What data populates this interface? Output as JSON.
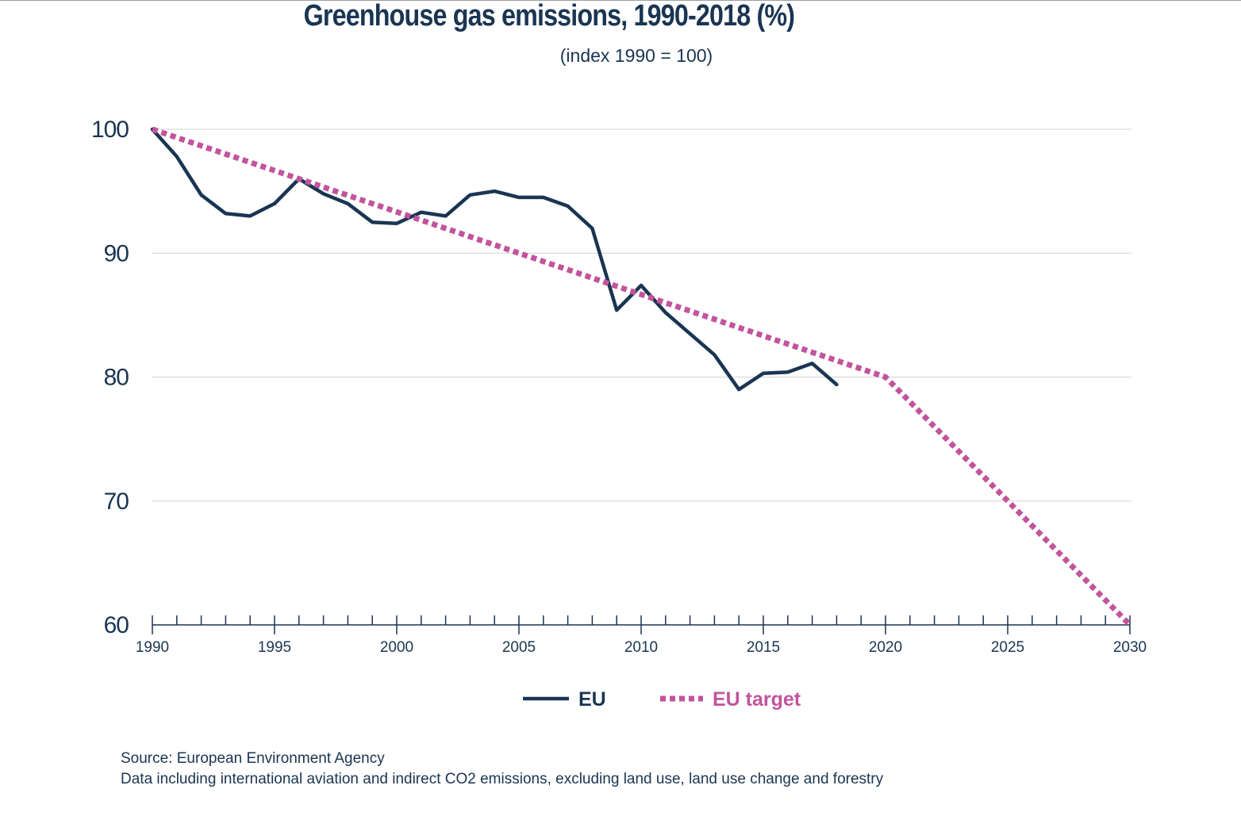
{
  "chart_data": {
    "type": "line",
    "title": "Greenhouse gas emissions, 1990-2018 (%)",
    "subtitle": "(index 1990 = 100)",
    "xlabel": "",
    "ylabel": "",
    "xlim": [
      1990,
      2030
    ],
    "ylim": [
      60,
      100
    ],
    "y_ticks": [
      100,
      90,
      80,
      70,
      60
    ],
    "x_tick_labels": [
      1990,
      1995,
      2000,
      2005,
      2010,
      2015,
      2020,
      2025,
      2030
    ],
    "grid": true,
    "legend_position": "bottom-center",
    "series": [
      {
        "name": "EU",
        "color": "#1a3552",
        "style": "solid",
        "x": [
          1990,
          1991,
          1992,
          1993,
          1994,
          1995,
          1996,
          1997,
          1998,
          1999,
          2000,
          2001,
          2002,
          2003,
          2004,
          2005,
          2006,
          2007,
          2008,
          2009,
          2010,
          2011,
          2012,
          2013,
          2014,
          2015,
          2016,
          2017,
          2018
        ],
        "values": [
          100,
          97.8,
          94.7,
          93.2,
          93.0,
          94.0,
          96.0,
          94.8,
          94.0,
          92.5,
          92.4,
          93.3,
          93.0,
          94.7,
          95.0,
          94.5,
          94.5,
          93.8,
          92.0,
          85.4,
          87.4,
          85.2,
          83.5,
          81.8,
          79.0,
          80.3,
          80.4,
          81.1,
          79.4
        ]
      },
      {
        "name": "EU target",
        "color": "#c2549d",
        "style": "dotted",
        "x": [
          1990,
          2020,
          2030
        ],
        "values": [
          100,
          80,
          60
        ]
      }
    ]
  },
  "footer": {
    "source": "Source: European Environment Agency",
    "note": "Data including international aviation and indirect CO2 emissions, excluding land use, land use change and forestry"
  }
}
